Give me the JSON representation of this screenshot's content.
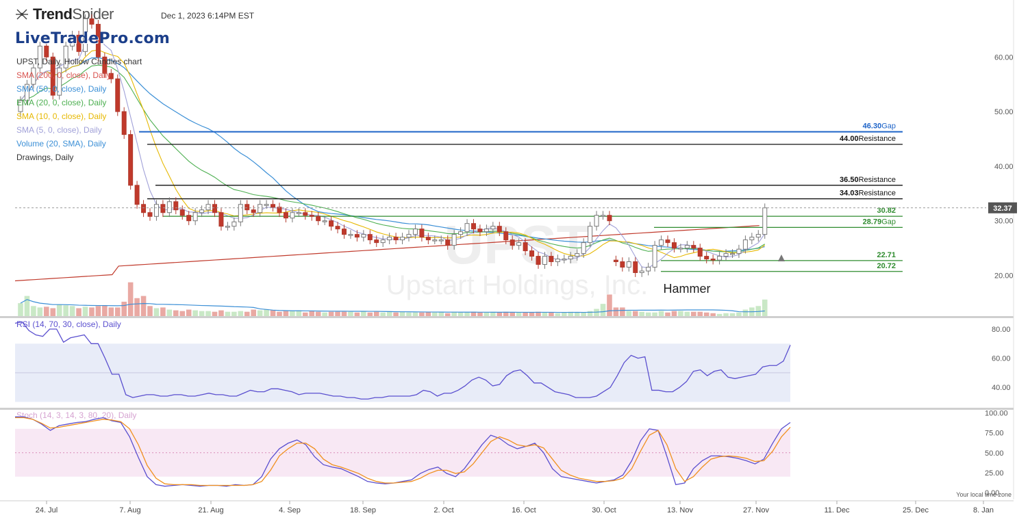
{
  "header": {
    "brand_bold": "Trend",
    "brand_light": "Spider",
    "timestamp": "Dec 1, 2023 6:14PM EST",
    "watermark": "LiveTradePro.com"
  },
  "legend": [
    {
      "text": "UPST, Daily, Hollow Candles chart",
      "color": "#333333"
    },
    {
      "text": "SMA (200, 0, close), Daily",
      "color": "#d9534f"
    },
    {
      "text": "SMA (50, 0, close), Daily",
      "color": "#3b8fd6"
    },
    {
      "text": "EMA (20, 0, close), Daily",
      "color": "#4caf50"
    },
    {
      "text": "SMA (10, 0, close), Daily",
      "color": "#e6b800"
    },
    {
      "text": "SMA (5, 0, close), Daily",
      "color": "#a0a0d8"
    },
    {
      "text": "Volume (20, SMA), Daily",
      "color": "#3b8fd6"
    },
    {
      "text": "Drawings, Daily",
      "color": "#333333"
    }
  ],
  "symbol_watermark": "UPST",
  "company_watermark": "Upstart Holdings, Inc.",
  "annotation": "Hammer",
  "last_price": "32.37",
  "footer_note": "Your local time zone",
  "colors": {
    "up": "#4caf50",
    "down": "#c0392b",
    "gap_blue": "#1e64c8",
    "green_line": "#2e8b2e",
    "rsi": "#5a4fcf",
    "stoch_k": "#5a4fcf",
    "stoch_d": "#f0901e"
  },
  "chart_data": [
    {
      "type": "candlestick",
      "title": "UPST, Daily, Hollow Candles chart",
      "ylim": [
        16,
        68
      ],
      "y_ticks": [
        "60.00",
        "50.00",
        "40.00",
        "30.00",
        "20.00"
      ],
      "x_ticks": [
        "24. Jul",
        "7. Aug",
        "21. Aug",
        "4. Sep",
        "18. Sep",
        "2. Oct",
        "16. Oct",
        "30. Oct",
        "13. Nov",
        "27. Nov",
        "11. Dec",
        "25. Dec",
        "8. Jan"
      ],
      "candles_close": [
        52,
        55,
        58,
        62,
        60,
        53,
        58,
        62,
        64,
        61,
        67,
        66,
        60,
        57,
        56,
        50,
        45.8,
        36.5,
        33,
        31.5,
        30.8,
        33,
        31.5,
        33.5,
        32,
        31,
        30,
        31.5,
        32,
        33,
        31.5,
        29,
        29,
        29.8,
        33,
        32,
        31.5,
        33,
        33,
        32.5,
        31.5,
        30.5,
        31.5,
        31.5,
        31,
        30.8,
        30,
        30,
        29,
        28.5,
        27.5,
        27.5,
        27,
        27.5,
        26.5,
        26,
        26.5,
        27,
        26.5,
        27,
        27.5,
        28.5,
        27,
        26.5,
        26.5,
        26.5,
        25.5,
        27.5,
        28,
        29.5,
        28.5,
        28,
        28.5,
        29,
        28,
        26.5,
        25.5,
        26,
        24.5,
        23.5,
        22,
        23.5,
        22.5,
        23,
        23,
        23.5,
        24,
        26,
        29,
        31,
        31,
        30,
        22.5,
        21.5,
        22.5,
        20.5,
        20.8,
        21.5,
        25.5,
        26.5,
        26,
        25,
        25,
        25.5,
        25,
        23.5,
        23,
        22.8,
        23.5,
        24,
        24,
        24.8,
        26.5,
        27,
        27.5,
        32.37
      ],
      "candles_open": [
        50,
        52,
        55,
        58,
        62,
        60,
        53,
        58,
        62,
        64,
        61,
        67,
        66,
        60,
        57,
        56,
        50,
        45.8,
        36.5,
        33,
        31.5,
        30.8,
        33,
        31.5,
        33.5,
        32,
        31,
        30,
        31.5,
        32,
        33,
        31.5,
        29,
        29,
        29.8,
        33,
        32,
        31.5,
        33,
        33,
        32.5,
        31.5,
        30.5,
        31.5,
        31.5,
        31,
        30.8,
        30,
        30,
        29,
        28.5,
        27.5,
        27.5,
        27,
        27.5,
        26.5,
        26,
        26.5,
        27,
        26.5,
        27,
        27.5,
        28.5,
        27,
        26.5,
        26.5,
        26.5,
        25.5,
        27.5,
        28,
        29.5,
        28.5,
        28,
        28.5,
        29,
        28,
        26.5,
        25.5,
        26,
        24.5,
        23.5,
        22,
        23.5,
        22.5,
        23,
        23,
        23.5,
        24,
        26,
        29,
        31,
        31,
        22.8,
        22.5,
        21.5,
        22.5,
        20.5,
        20.8,
        21.5,
        25.5,
        26.5,
        26,
        25,
        25,
        25.5,
        25,
        23.5,
        23,
        22.8,
        23.5,
        24,
        24,
        24.8,
        26.5,
        27,
        27.5
      ],
      "levels": [
        {
          "value": 46.3,
          "label": "46.30",
          "tag": "Gap",
          "color": "#1e64c8"
        },
        {
          "value": 44.0,
          "label": "44.00",
          "tag": "Resistance",
          "color": "#111111"
        },
        {
          "value": 36.5,
          "label": "36.50",
          "tag": "Resistance",
          "color": "#111111"
        },
        {
          "value": 34.03,
          "label": "34.03",
          "tag": "Resistance",
          "color": "#111111"
        },
        {
          "value": 30.82,
          "label": "30.82",
          "tag": "",
          "color": "#2e8b2e"
        },
        {
          "value": 28.79,
          "label": "28.79",
          "tag": "Gap",
          "color": "#2e8b2e"
        },
        {
          "value": 22.71,
          "label": "22.71",
          "tag": "",
          "color": "#2e8b2e"
        },
        {
          "value": 20.72,
          "label": "20.72",
          "tag": "",
          "color": "#2e8b2e"
        }
      ],
      "volume": [
        18,
        28,
        14,
        12,
        13,
        11,
        16,
        15,
        14,
        11,
        13,
        12,
        14,
        15,
        12,
        12,
        20,
        47,
        25,
        28,
        14,
        11,
        12,
        9,
        8,
        7,
        9,
        8,
        7,
        7,
        6,
        8,
        6,
        6,
        7,
        6,
        9,
        8,
        9,
        8,
        6,
        7,
        7,
        8,
        5,
        7,
        6,
        5,
        6,
        6,
        6,
        6,
        5,
        7,
        5,
        6,
        5,
        6,
        5,
        6,
        5,
        5,
        5,
        6,
        5,
        6,
        4,
        6,
        5,
        5,
        6,
        5,
        5,
        6,
        5,
        6,
        5,
        5,
        5,
        5,
        6,
        5,
        5,
        4,
        5,
        6,
        5,
        5,
        7,
        10,
        17,
        30,
        12,
        12,
        7,
        7,
        6,
        5,
        5,
        7,
        5,
        7,
        7,
        6,
        6,
        6,
        5,
        4,
        3,
        4,
        4,
        5,
        9,
        12,
        14,
        23
      ]
    },
    {
      "type": "line",
      "title": "RSI (14, 70, 30, close), Daily",
      "ylim": [
        28,
        87
      ],
      "y_ticks": [
        "80.00",
        "60.00",
        "40.00"
      ],
      "band": [
        30,
        70
      ],
      "series": [
        {
          "name": "RSI",
          "values": [
            84,
            85,
            79,
            76,
            75,
            80,
            80,
            71,
            74,
            75,
            76,
            70,
            70,
            60,
            49,
            49,
            35,
            33,
            34,
            35,
            35,
            34,
            34,
            35,
            35,
            34,
            34,
            35,
            36,
            35,
            35,
            34,
            34,
            36,
            38,
            37,
            37,
            39,
            39,
            38,
            37,
            35,
            36,
            36,
            36,
            35,
            34,
            34,
            33,
            33,
            32,
            32,
            33,
            33,
            34,
            34,
            34,
            34,
            35,
            38,
            37,
            34,
            36,
            36,
            38,
            41,
            45,
            47,
            45,
            41,
            42,
            48,
            51,
            52,
            48,
            43,
            43,
            40,
            37,
            36,
            35,
            33,
            33,
            33,
            34,
            37,
            40,
            48,
            57,
            62,
            60,
            61,
            38,
            38,
            37,
            37,
            40,
            44,
            51,
            52,
            48,
            51,
            52,
            47,
            46,
            47,
            48,
            49,
            54,
            55,
            55,
            58,
            69
          ]
        }
      ]
    },
    {
      "type": "line",
      "title": "Stoch (14, 3, 14, 3, 80, 20), Daily",
      "ylim": [
        0,
        100
      ],
      "y_ticks": [
        "100.00",
        "75.00",
        "50.00",
        "25.00",
        "0.00"
      ],
      "band": [
        20,
        80
      ],
      "series": [
        {
          "name": "%K",
          "values": [
            95,
            95,
            92,
            86,
            78,
            84,
            86,
            88,
            89,
            92,
            94,
            90,
            88,
            70,
            44,
            20,
            10,
            8,
            9,
            10,
            9,
            8,
            9,
            9,
            8,
            10,
            9,
            10,
            20,
            42,
            55,
            62,
            66,
            60,
            45,
            35,
            32,
            30,
            25,
            20,
            14,
            12,
            11,
            12,
            14,
            16,
            24,
            29,
            32,
            24,
            20,
            30,
            45,
            60,
            72,
            68,
            60,
            55,
            58,
            62,
            50,
            30,
            20,
            18,
            16,
            14,
            12,
            14,
            16,
            22,
            40,
            65,
            80,
            78,
            45,
            10,
            12,
            30,
            40,
            46,
            46,
            45,
            43,
            40,
            36,
            42,
            62,
            80,
            88
          ]
        },
        {
          "name": "%D",
          "values": [
            94,
            94,
            92,
            87,
            81,
            82,
            84,
            86,
            88,
            90,
            92,
            91,
            89,
            80,
            60,
            34,
            18,
            11,
            10,
            10,
            10,
            9,
            9,
            9,
            9,
            9,
            9,
            10,
            14,
            28,
            46,
            55,
            62,
            62,
            55,
            42,
            35,
            32,
            28,
            24,
            18,
            14,
            12,
            12,
            13,
            14,
            18,
            24,
            28,
            28,
            24,
            26,
            36,
            50,
            64,
            70,
            66,
            60,
            58,
            60,
            56,
            42,
            28,
            22,
            18,
            16,
            14,
            14,
            15,
            18,
            30,
            52,
            72,
            78,
            60,
            30,
            14,
            20,
            32,
            42,
            45,
            46,
            45,
            43,
            39,
            40,
            52,
            70,
            82
          ]
        }
      ]
    }
  ]
}
